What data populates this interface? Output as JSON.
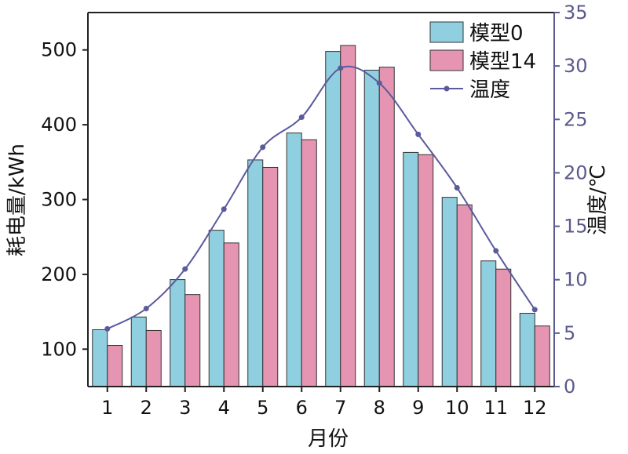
{
  "chart_data": {
    "type": "bar",
    "categories": [
      "1",
      "2",
      "3",
      "4",
      "5",
      "6",
      "7",
      "8",
      "9",
      "10",
      "11",
      "12"
    ],
    "series": [
      {
        "name": "模型0",
        "values": [
          126,
          143,
          193,
          259,
          353,
          389,
          498,
          473,
          363,
          303,
          218,
          148
        ],
        "color": "#8fcfdf"
      },
      {
        "name": "模型14",
        "values": [
          105,
          125,
          173,
          242,
          343,
          380,
          506,
          477,
          360,
          293,
          207,
          131
        ],
        "color": "#e595b2"
      }
    ],
    "line_series": {
      "name": "温度",
      "values": [
        5.4,
        7.3,
        11.0,
        16.6,
        22.4,
        25.2,
        29.8,
        28.4,
        23.6,
        18.6,
        12.7,
        7.2
      ],
      "color": "#5a5a9c",
      "axis": "right"
    },
    "xlabel": "月份",
    "ylabel": "耗电量/kWh",
    "ylabel_right": "温度/℃",
    "ylim": [
      50,
      550
    ],
    "yticks": [
      100,
      200,
      300,
      400,
      500
    ],
    "ylim_right": [
      0,
      35
    ],
    "yticks_right": [
      0,
      5,
      10,
      15,
      20,
      25,
      30,
      35
    ],
    "legend_position": "top-right",
    "grid": false
  }
}
